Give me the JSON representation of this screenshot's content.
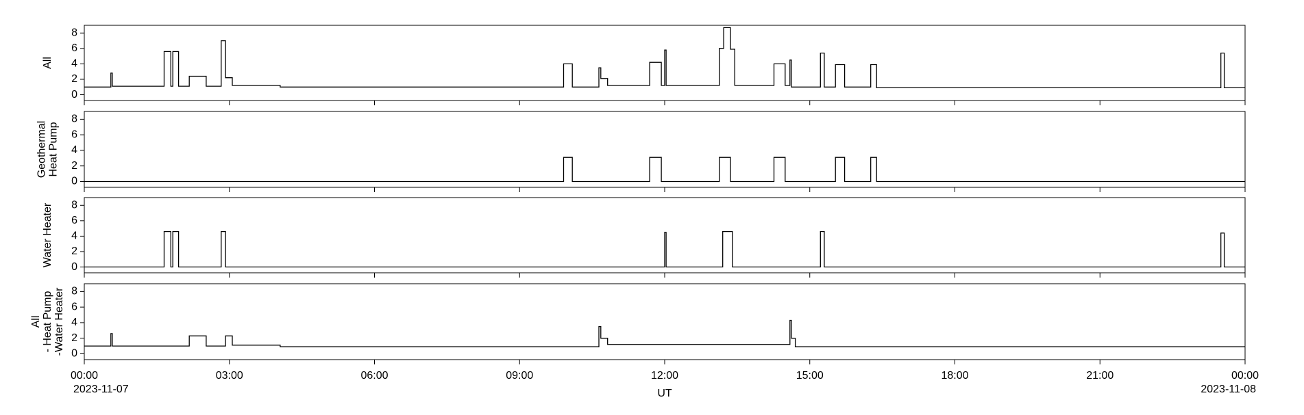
{
  "chart_data": [
    {
      "type": "line",
      "ylabel": [
        "All"
      ],
      "color": "#000000",
      "ylim": [
        -0.75,
        9
      ],
      "yticks": [
        0,
        2,
        4,
        6,
        8
      ],
      "x": [
        0,
        0.55,
        0.55,
        0.58,
        0.58,
        1.65,
        1.65,
        1.79,
        1.79,
        1.83,
        1.83,
        1.95,
        1.95,
        2.17,
        2.17,
        2.52,
        2.52,
        2.83,
        2.83,
        2.92,
        2.92,
        3.06,
        3.06,
        4.05,
        4.05,
        9.91,
        9.91,
        10.09,
        10.09,
        10.64,
        10.64,
        10.68,
        10.68,
        10.82,
        10.82,
        11.69,
        11.69,
        11.93,
        11.93,
        12.0,
        12.0,
        12.03,
        12.03,
        13.13,
        13.13,
        13.22,
        13.22,
        13.36,
        13.36,
        13.45,
        13.45,
        14.26,
        14.26,
        14.49,
        14.49,
        14.59,
        14.59,
        14.62,
        14.62,
        15.22,
        15.22,
        15.3,
        15.3,
        15.53,
        15.53,
        15.72,
        15.72,
        16.26,
        16.26,
        16.38,
        16.38,
        23.5,
        23.5,
        23.57,
        23.57,
        24
      ],
      "values": [
        1.0,
        1.0,
        2.8,
        2.8,
        1.1,
        1.1,
        5.6,
        5.6,
        1.1,
        1.1,
        5.6,
        5.6,
        1.1,
        1.1,
        2.4,
        2.4,
        1.1,
        1.1,
        7.0,
        7.0,
        2.2,
        2.2,
        1.2,
        1.2,
        1.0,
        1.0,
        4.0,
        4.0,
        1.0,
        1.0,
        3.5,
        3.5,
        2.1,
        2.1,
        1.2,
        1.2,
        4.2,
        4.2,
        1.2,
        1.2,
        5.8,
        5.8,
        1.2,
        1.2,
        6.0,
        6.0,
        8.7,
        8.7,
        5.9,
        5.9,
        1.2,
        1.2,
        4.0,
        4.0,
        1.2,
        1.2,
        4.5,
        4.5,
        1.0,
        1.0,
        5.4,
        5.4,
        1.0,
        1.0,
        3.9,
        3.9,
        1.0,
        1.0,
        3.9,
        3.9,
        0.9,
        0.9,
        5.4,
        5.4,
        0.9,
        0.9
      ]
    },
    {
      "type": "line",
      "ylabel": [
        "Geothermal",
        "Heat Pump"
      ],
      "color": "#000000",
      "ylim": [
        -0.75,
        9
      ],
      "yticks": [
        0,
        2,
        4,
        6,
        8
      ],
      "x": [
        0,
        9.91,
        9.91,
        10.09,
        10.09,
        11.69,
        11.69,
        11.93,
        11.93,
        13.13,
        13.13,
        13.36,
        13.36,
        14.26,
        14.26,
        14.49,
        14.49,
        15.53,
        15.53,
        15.72,
        15.72,
        16.26,
        16.26,
        16.38,
        16.38,
        24
      ],
      "values": [
        0,
        0,
        3.1,
        3.1,
        0,
        0,
        3.1,
        3.1,
        0,
        0,
        3.1,
        3.1,
        0,
        0,
        3.1,
        3.1,
        0,
        0,
        3.1,
        3.1,
        0,
        0,
        3.1,
        3.1,
        0,
        0
      ]
    },
    {
      "type": "line",
      "ylabel": [
        "Water Heater"
      ],
      "color": "#000000",
      "ylim": [
        -0.75,
        9
      ],
      "yticks": [
        0,
        2,
        4,
        6,
        8
      ],
      "x": [
        0,
        1.65,
        1.65,
        1.79,
        1.79,
        1.83,
        1.83,
        1.95,
        1.95,
        2.83,
        2.83,
        2.92,
        2.92,
        12.0,
        12.0,
        12.03,
        12.03,
        13.2,
        13.2,
        13.4,
        13.4,
        15.22,
        15.22,
        15.3,
        15.3,
        23.5,
        23.5,
        23.57,
        23.57,
        24
      ],
      "values": [
        0,
        0,
        4.6,
        4.6,
        0,
        0,
        4.6,
        4.6,
        0,
        0,
        4.6,
        4.6,
        0,
        0,
        4.5,
        4.5,
        0,
        0,
        4.6,
        4.6,
        0,
        0,
        4.6,
        4.6,
        0,
        0,
        4.4,
        4.4,
        0,
        0
      ]
    },
    {
      "type": "line",
      "ylabel": [
        "All",
        "- Heat Pump",
        "-Water Heater"
      ],
      "color": "#000000",
      "ylim": [
        -0.75,
        9
      ],
      "yticks": [
        0,
        2,
        4,
        6,
        8
      ],
      "x": [
        0,
        0.55,
        0.55,
        0.58,
        0.58,
        2.17,
        2.17,
        2.52,
        2.52,
        2.92,
        2.92,
        3.06,
        3.06,
        4.05,
        4.05,
        10.64,
        10.64,
        10.68,
        10.68,
        10.82,
        10.82,
        14.59,
        14.59,
        14.62,
        14.62,
        14.7,
        14.7,
        24
      ],
      "values": [
        1.0,
        1.0,
        2.6,
        2.6,
        1.0,
        1.0,
        2.3,
        2.3,
        1.0,
        1.0,
        2.3,
        2.3,
        1.1,
        1.1,
        0.9,
        0.9,
        3.5,
        3.5,
        2.0,
        2.0,
        1.2,
        1.2,
        4.3,
        4.3,
        2.0,
        2.0,
        0.9,
        0.9
      ],
      "xlim": [
        0,
        24
      ],
      "xticks": [
        {
          "value": 0,
          "label": "00:00"
        },
        {
          "value": 3,
          "label": "03:00"
        },
        {
          "value": 6,
          "label": "06:00"
        },
        {
          "value": 9,
          "label": "09:00"
        },
        {
          "value": 12,
          "label": "12:00"
        },
        {
          "value": 15,
          "label": "15:00"
        },
        {
          "value": 18,
          "label": "18:00"
        },
        {
          "value": 21,
          "label": "21:00"
        },
        {
          "value": 24,
          "label": "00:00"
        }
      ],
      "xtick_dates": [
        {
          "value": 0,
          "label": "2023-11-07"
        },
        {
          "value": 24,
          "label": "2023-11-08"
        }
      ],
      "xlabel": "UT"
    }
  ]
}
